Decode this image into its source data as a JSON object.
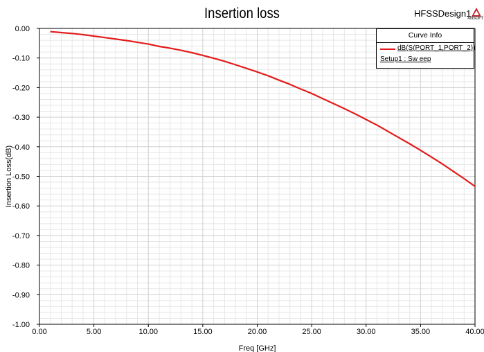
{
  "header": {
    "title": "Insertion loss",
    "project_name": "HFSSDesign1",
    "logo_text": "ANSOFT"
  },
  "legend": {
    "header": "Curve Info",
    "series_label": "dB(S(PORT_1,PORT_2))",
    "setup_label": "Setup1 : Sw eep"
  },
  "colors": {
    "series": "#e41b1b",
    "grid": "#d0d0d0",
    "logo": "#c8202a"
  },
  "chart_data": {
    "type": "line",
    "title": "Insertion loss",
    "xlabel": "Freq [GHz]",
    "ylabel": "Insertion Loss(dB)",
    "xlim": [
      0,
      40
    ],
    "ylim": [
      -1.0,
      0.0
    ],
    "x_ticks": [
      "0.00",
      "5.00",
      "10.00",
      "15.00",
      "20.00",
      "25.00",
      "30.00",
      "35.00",
      "40.00"
    ],
    "y_ticks": [
      "0.00",
      "-0.10",
      "-0.20",
      "-0.30",
      "-0.40",
      "-0.50",
      "-0.60",
      "-0.70",
      "-0.80",
      "-0.90",
      "-1.00"
    ],
    "grid": true,
    "legend_position": "top-right",
    "series": [
      {
        "name": "dB(S(PORT_1,PORT_2))",
        "x": [
          1,
          2,
          3,
          4,
          5,
          6,
          7,
          8,
          9,
          10,
          11,
          12,
          13,
          14,
          15,
          16,
          17,
          18,
          19,
          20,
          21,
          22,
          23,
          24,
          25,
          26,
          27,
          28,
          29,
          30,
          31,
          32,
          33,
          34,
          35,
          36,
          37,
          38,
          39,
          40
        ],
        "y": [
          -0.011,
          -0.014,
          -0.017,
          -0.021,
          -0.026,
          -0.031,
          -0.036,
          -0.041,
          -0.047,
          -0.053,
          -0.061,
          -0.067,
          -0.074,
          -0.082,
          -0.091,
          -0.101,
          -0.111,
          -0.123,
          -0.135,
          -0.147,
          -0.16,
          -0.175,
          -0.189,
          -0.205,
          -0.22,
          -0.237,
          -0.254,
          -0.271,
          -0.289,
          -0.308,
          -0.327,
          -0.348,
          -0.369,
          -0.39,
          -0.412,
          -0.435,
          -0.458,
          -0.483,
          -0.508,
          -0.534
        ]
      }
    ]
  }
}
